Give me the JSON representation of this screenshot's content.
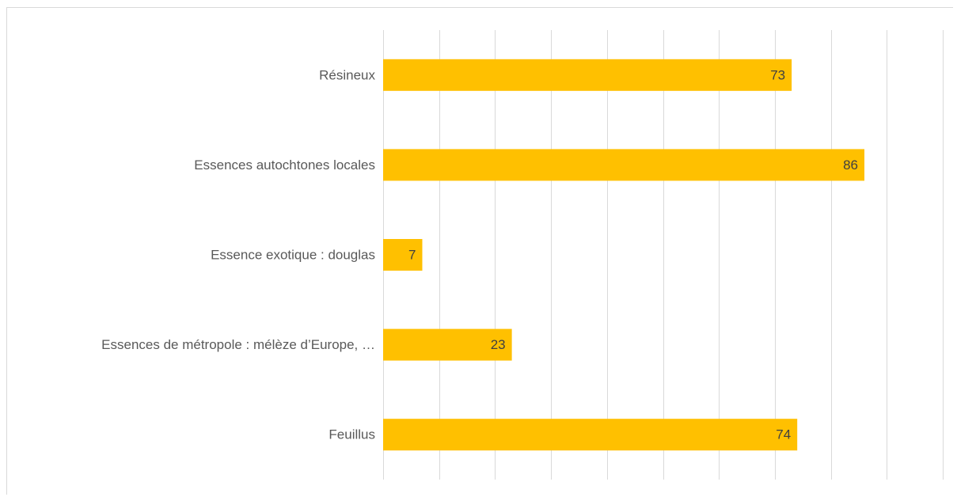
{
  "chart_data": {
    "type": "bar",
    "orientation": "horizontal",
    "categories": [
      "Résineux",
      "Essences autochtones locales",
      "Essence exotique : douglas",
      "Essences de métropole : mélèze d’Europe, …",
      "Feuillus"
    ],
    "values": [
      73,
      86,
      7,
      23,
      74
    ],
    "title": "",
    "xlabel": "",
    "ylabel": "",
    "xlim": [
      0,
      100
    ],
    "grid": true,
    "gridlines_every": 10,
    "legend": "none",
    "data_labels": "inside-end",
    "colors": {
      "bar": "#FFC000",
      "grid": "#d9d9d9",
      "category_text": "#595959",
      "value_text": "#404040"
    }
  }
}
